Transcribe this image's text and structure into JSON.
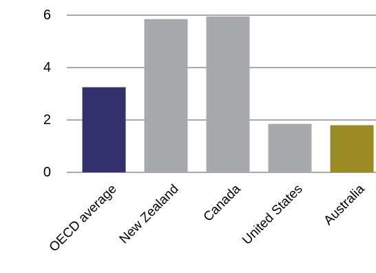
{
  "chart_data": {
    "type": "bar",
    "categories": [
      "OECD average",
      "New Zealand",
      "Canada",
      "United States",
      "Australia"
    ],
    "values": [
      3.25,
      5.85,
      5.95,
      1.85,
      1.8
    ],
    "colors": [
      "#34306e",
      "#a7a9ac",
      "#a7a9ac",
      "#a7a9ac",
      "#9a8b22"
    ],
    "ylim": [
      0,
      6
    ],
    "yticks": [
      0,
      2,
      4,
      6
    ],
    "ytick_labels": [
      "0",
      "2",
      "4",
      "6"
    ],
    "grid": true,
    "grid_color": "#a7a9ac",
    "title": "",
    "xlabel": "",
    "ylabel": ""
  }
}
